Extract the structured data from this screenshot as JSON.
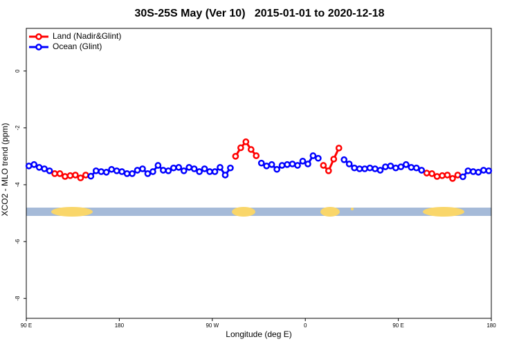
{
  "chart_data": {
    "type": "line",
    "title": "30S-25S May (Ver 10)   2015-01-01 to 2020-12-18",
    "xlabel": "Longitude (deg E)",
    "ylabel": "XCO2 - MLO trend (ppm)",
    "x": [
      92.5,
      97.5,
      102.5,
      107.5,
      112.5,
      117.5,
      122.5,
      127.5,
      132.5,
      137.5,
      142.5,
      147.5,
      152.5,
      157.5,
      162.5,
      167.5,
      172.5,
      177.5,
      182.5,
      187.5,
      192.5,
      197.5,
      202.5,
      207.5,
      212.5,
      217.5,
      222.5,
      227.5,
      232.5,
      237.5,
      242.5,
      247.5,
      252.5,
      257.5,
      262.5,
      267.5,
      272.5,
      277.5,
      282.5,
      287.5,
      292.5,
      297.5,
      302.5,
      307.5,
      312.5,
      317.5,
      322.5,
      327.5,
      332.5,
      337.5,
      342.5,
      347.5,
      352.5,
      357.5,
      362.5,
      367.5,
      372.5,
      377.5,
      382.5,
      387.5,
      392.5,
      397.5,
      402.5,
      407.5,
      412.5,
      417.5,
      422.5,
      427.5,
      432.5,
      437.5,
      442.5,
      447.5,
      452.5,
      457.5,
      462.5,
      467.5,
      472.5,
      477.5,
      482.5,
      487.5,
      492.5,
      497.5,
      502.5,
      507.5,
      512.5,
      517.5,
      522.5,
      527.5,
      532.5,
      537.5
    ],
    "series": [
      {
        "name": "Land (Nadir&Glint)",
        "color": "#ff0000",
        "values": [
          null,
          null,
          null,
          null,
          null,
          -3.61,
          -3.61,
          -3.71,
          -3.68,
          -3.66,
          -3.76,
          -3.66,
          null,
          null,
          null,
          null,
          null,
          null,
          null,
          null,
          null,
          null,
          null,
          null,
          null,
          null,
          null,
          null,
          null,
          null,
          null,
          null,
          null,
          null,
          null,
          null,
          null,
          null,
          null,
          null,
          -3.0,
          -2.7,
          -2.49,
          -2.76,
          -2.98,
          null,
          null,
          null,
          null,
          null,
          null,
          null,
          null,
          null,
          null,
          null,
          null,
          -3.32,
          -3.51,
          -3.1,
          -2.71,
          null,
          null,
          null,
          null,
          null,
          null,
          null,
          null,
          null,
          null,
          null,
          null,
          null,
          null,
          null,
          null,
          -3.59,
          -3.61,
          -3.71,
          -3.68,
          -3.66,
          -3.78,
          -3.66,
          null,
          null,
          null,
          null,
          null,
          null
        ]
      },
      {
        "name": "Ocean (Glint)",
        "color": "#0000ff",
        "values": [
          -3.34,
          -3.29,
          -3.39,
          -3.44,
          -3.51,
          null,
          null,
          null,
          null,
          null,
          null,
          null,
          -3.7,
          -3.51,
          -3.54,
          -3.56,
          -3.46,
          -3.51,
          -3.54,
          -3.61,
          -3.61,
          -3.49,
          -3.44,
          -3.61,
          -3.54,
          -3.32,
          -3.49,
          -3.51,
          -3.41,
          -3.39,
          -3.51,
          -3.39,
          -3.44,
          -3.54,
          -3.44,
          -3.54,
          -3.54,
          -3.39,
          -3.66,
          -3.41,
          null,
          null,
          null,
          null,
          null,
          -3.24,
          -3.34,
          -3.29,
          -3.46,
          -3.32,
          -3.29,
          -3.27,
          -3.32,
          -3.17,
          -3.27,
          -2.98,
          -3.07,
          null,
          null,
          null,
          null,
          -3.12,
          -3.27,
          -3.41,
          -3.44,
          -3.44,
          -3.41,
          -3.44,
          -3.49,
          -3.37,
          -3.34,
          -3.41,
          -3.37,
          -3.29,
          -3.39,
          -3.41,
          -3.49,
          null,
          null,
          null,
          null,
          null,
          null,
          null,
          -3.72,
          -3.51,
          -3.54,
          -3.56,
          -3.49,
          -3.51
        ]
      }
    ],
    "xlim": [
      90,
      540
    ],
    "xticks": [
      {
        "value": 90,
        "label": "90 E"
      },
      180,
      {
        "value": 270,
        "label": "90 W"
      },
      {
        "value": 360,
        "label": "0"
      },
      {
        "value": 450,
        "label": "90 E"
      },
      {
        "value": 540,
        "label": "180"
      }
    ],
    "ylim": [
      -8.7,
      1.5
    ],
    "yticks": [
      0,
      -2,
      -4,
      -6,
      -8
    ],
    "legend": "top-left"
  }
}
